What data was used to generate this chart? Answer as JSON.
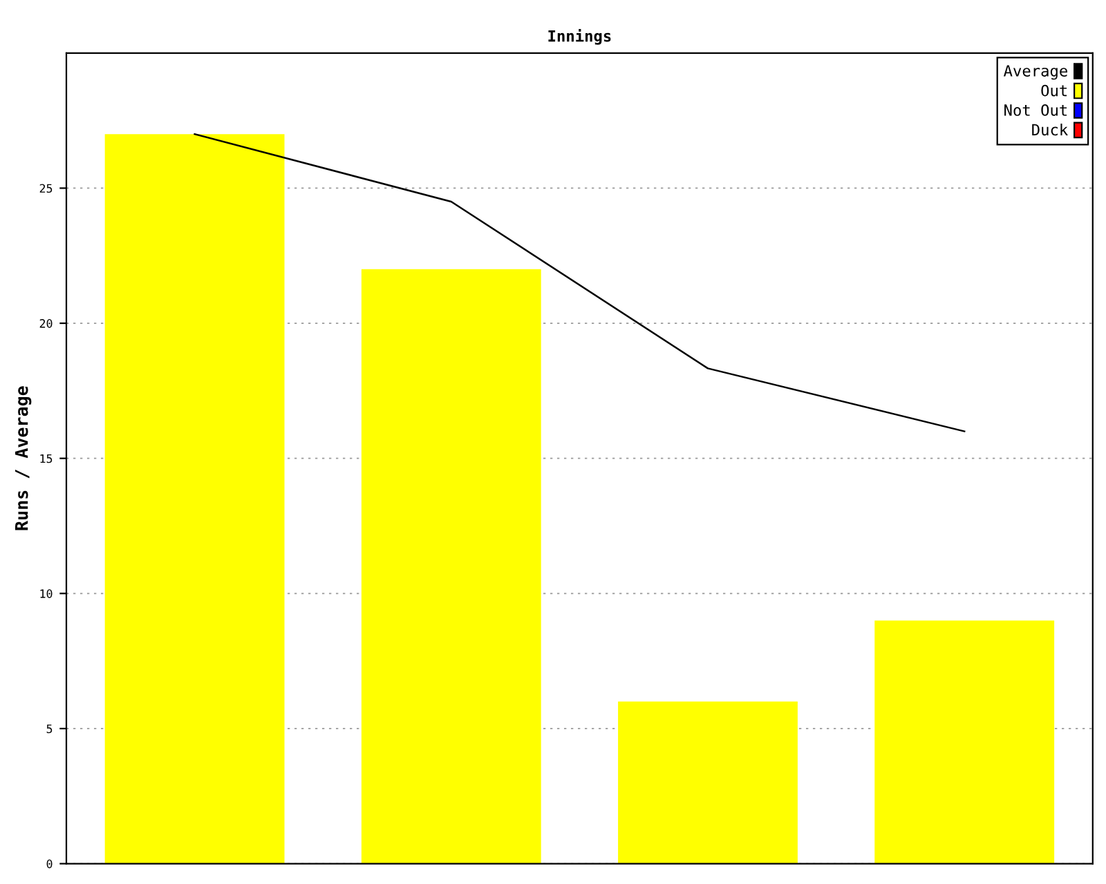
{
  "chart_data": {
    "type": "bar",
    "title": "Innings",
    "ylabel": "Runs / Average",
    "categories": [
      null,
      null,
      null,
      null
    ],
    "series": [
      {
        "name": "Average",
        "type": "line",
        "color": "#000000",
        "values": [
          27,
          24.5,
          18.33,
          16
        ]
      },
      {
        "name": "Out",
        "color": "#ffff00",
        "values": [
          27,
          22,
          6,
          9
        ]
      },
      {
        "name": "Not Out",
        "color": "#0000ff",
        "values": [
          null,
          null,
          null,
          null
        ]
      },
      {
        "name": "Duck",
        "color": "#ff0000",
        "values": [
          null,
          null,
          null,
          null
        ]
      }
    ],
    "ylim": [
      0,
      30
    ],
    "yticks": [
      0,
      5,
      10,
      15,
      20,
      25
    ],
    "grid": "y",
    "legend": "top right",
    "marker": "none",
    "line_style": "solid"
  }
}
